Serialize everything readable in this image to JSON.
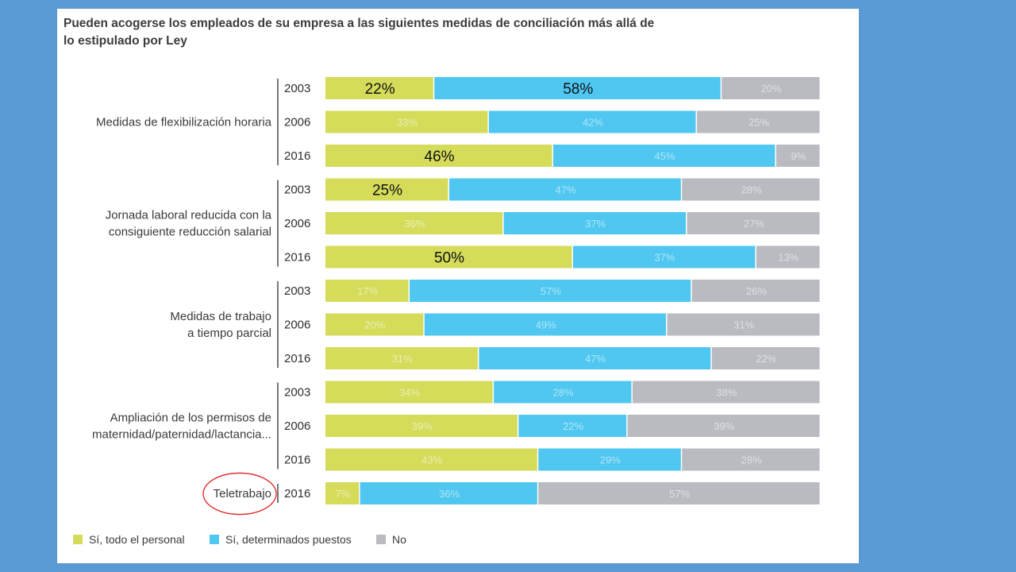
{
  "chart_data": {
    "type": "bar",
    "orientation": "horizontal",
    "stacked": true,
    "title": "Pueden acogerse los empleados de su empresa a las siguientes medidas de conciliación más allá de lo estipulado por Ley",
    "series": [
      {
        "name": "Sí, todo el personal",
        "color": "#d4dc5a"
      },
      {
        "name": "Sí, determinados puestos",
        "color": "#4fc7f0"
      },
      {
        "name": "No",
        "color": "#b9bbc0"
      }
    ],
    "groups": [
      {
        "label": [
          "Medidas de flexibilización horaria"
        ],
        "rows": [
          {
            "year": "2003",
            "values": [
              22,
              58,
              20
            ],
            "emphasized": [
              true,
              true,
              false
            ]
          },
          {
            "year": "2006",
            "values": [
              33,
              42,
              25
            ],
            "emphasized": [
              false,
              false,
              false
            ]
          },
          {
            "year": "2016",
            "values": [
              46,
              45,
              9
            ],
            "emphasized": [
              true,
              false,
              false
            ]
          }
        ]
      },
      {
        "label": [
          "Jornada laboral reducida con la",
          "consiguiente reducción salarial"
        ],
        "rows": [
          {
            "year": "2003",
            "values": [
              25,
              47,
              28
            ],
            "emphasized": [
              true,
              false,
              false
            ]
          },
          {
            "year": "2006",
            "values": [
              36,
              37,
              27
            ],
            "emphasized": [
              false,
              false,
              false
            ]
          },
          {
            "year": "2016",
            "values": [
              50,
              37,
              13
            ],
            "emphasized": [
              true,
              false,
              false
            ]
          }
        ]
      },
      {
        "label": [
          "Medidas de trabajo",
          "a tiempo parcial"
        ],
        "rows": [
          {
            "year": "2003",
            "values": [
              17,
              57,
              26
            ],
            "emphasized": [
              false,
              false,
              false
            ]
          },
          {
            "year": "2006",
            "values": [
              20,
              49,
              31
            ],
            "emphasized": [
              false,
              false,
              false
            ]
          },
          {
            "year": "2016",
            "values": [
              31,
              47,
              22
            ],
            "emphasized": [
              false,
              false,
              false
            ]
          }
        ]
      },
      {
        "label": [
          "Ampliación de los permisos de",
          "maternidad/paternidad/lactancia..."
        ],
        "rows": [
          {
            "year": "2003",
            "values": [
              34,
              28,
              38
            ],
            "emphasized": [
              false,
              false,
              false
            ]
          },
          {
            "year": "2006",
            "values": [
              39,
              22,
              39
            ],
            "emphasized": [
              false,
              false,
              false
            ]
          },
          {
            "year": "2016",
            "values": [
              43,
              29,
              28
            ],
            "emphasized": [
              false,
              false,
              false
            ]
          }
        ]
      },
      {
        "label": [
          "Teletrabajo"
        ],
        "circled": true,
        "rows": [
          {
            "year": "2016",
            "values": [
              7,
              36,
              57
            ],
            "emphasized": [
              false,
              false,
              false
            ]
          }
        ]
      }
    ]
  }
}
